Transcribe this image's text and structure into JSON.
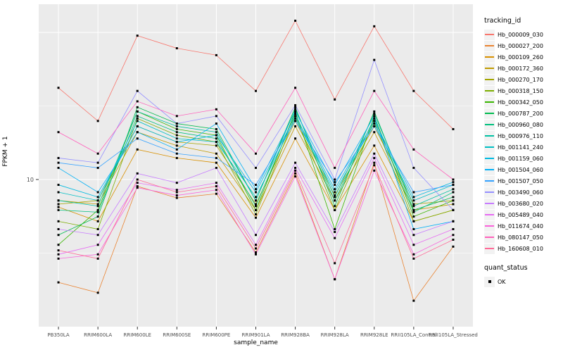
{
  "chart_data": {
    "type": "line",
    "title": "",
    "xlabel": "sample_name",
    "ylabel": "FPKM + 1",
    "y_scale": "log10",
    "ylim": [
      1,
      155
    ],
    "grid": true,
    "legend_position": "right",
    "panel_bg": "#EBEBEB",
    "grid_color": "#FFFFFF",
    "point_color": "#000000",
    "axis_text_color": "#4D4D4D",
    "y_major_ticks": [
      {
        "label": "10",
        "value": 10
      }
    ],
    "y_major_gridlines": [
      10,
      100
    ],
    "y_minor_gridlines": [
      3.162,
      31.62
    ],
    "categories": [
      "PB350LA",
      "RRIM600LA",
      "RRIM600LE",
      "RRIM600SE",
      "RRIM600PE",
      "RRIM901LA",
      "RRIM928BA",
      "RRIM928LA",
      "RRIM928LE",
      "RRII105LA_Control",
      "RRII105LA_Stressed"
    ],
    "series": [
      {
        "name": "Hb_000009_030",
        "color": "#F8766D",
        "values": [
          42,
          25,
          95,
          78,
          70,
          40,
          120,
          35,
          110,
          40,
          22
        ]
      },
      {
        "name": "Hb_000027_200",
        "color": "#EA8331",
        "values": [
          2.0,
          1.7,
          9,
          7.5,
          8,
          3.2,
          11,
          2.1,
          13,
          1.5,
          3.5
        ]
      },
      {
        "name": "Hb_000109_260",
        "color": "#D89000",
        "values": [
          6.5,
          5.2,
          16,
          14,
          13,
          5.5,
          19,
          6.2,
          17,
          5.2,
          6.2
        ]
      },
      {
        "name": "Hb_000172_360",
        "color": "#C09B00",
        "values": [
          7.2,
          6.8,
          21,
          17,
          15,
          6.2,
          23,
          7.2,
          21,
          6.2,
          6.8
        ]
      },
      {
        "name": "Hb_000270_170",
        "color": "#A3A500",
        "values": [
          6.8,
          7.2,
          23,
          18,
          17,
          6.8,
          25,
          7.8,
          23,
          6.8,
          7.2
        ]
      },
      {
        "name": "Hb_000318_150",
        "color": "#7CAE00",
        "values": [
          5.2,
          4.6,
          26,
          20,
          18,
          5.8,
          27,
          6.2,
          25,
          5.2,
          6.2
        ]
      },
      {
        "name": "Hb_000342_050",
        "color": "#39B600",
        "values": [
          3.6,
          6.2,
          29,
          22,
          20,
          6.2,
          29,
          4.6,
          27,
          5.6,
          7.2
        ]
      },
      {
        "name": "Hb_000787_200",
        "color": "#00BB4E",
        "values": [
          4.2,
          5.6,
          31,
          24,
          22,
          7.2,
          31,
          6.6,
          29,
          6.2,
          7.6
        ]
      },
      {
        "name": "Hb_000960_080",
        "color": "#00BF7D",
        "values": [
          6.2,
          6.0,
          27,
          21,
          19,
          6.6,
          28,
          7.2,
          26,
          6.0,
          8.2
        ]
      },
      {
        "name": "Hb_000976_110",
        "color": "#00C1A3",
        "values": [
          7.2,
          6.6,
          29,
          23,
          21,
          7.2,
          30,
          7.6,
          28,
          6.6,
          8.6
        ]
      },
      {
        "name": "Hb_001141_240",
        "color": "#00BFC4",
        "values": [
          8.2,
          7.2,
          25,
          19,
          18,
          7.6,
          26,
          8.2,
          24,
          7.2,
          9.2
        ]
      },
      {
        "name": "Hb_001159_060",
        "color": "#00BAE0",
        "values": [
          9.2,
          7.6,
          23,
          18,
          20,
          8.2,
          27,
          8.6,
          25,
          7.6,
          9.6
        ]
      },
      {
        "name": "Hb_001504_060",
        "color": "#00B0F6",
        "values": [
          12,
          8.2,
          21,
          16,
          24,
          8.6,
          29,
          9.2,
          27,
          4.6,
          5.2
        ]
      },
      {
        "name": "Hb_001507_050",
        "color": "#35A2FF",
        "values": [
          13,
          12,
          19,
          15,
          14,
          9.2,
          25,
          9.6,
          23,
          8.2,
          9.2
        ]
      },
      {
        "name": "Hb_003490_060",
        "color": "#9590FF",
        "values": [
          14,
          13,
          40,
          24,
          27,
          12,
          32,
          10,
          65,
          12,
          6.2
        ]
      },
      {
        "name": "Hb_003680_020",
        "color": "#C77CFF",
        "values": [
          4.6,
          4.2,
          11,
          9.5,
          12,
          4.2,
          13,
          4.4,
          15,
          4.2,
          5.2
        ]
      },
      {
        "name": "Hb_005489_040",
        "color": "#E76BF3",
        "values": [
          3.1,
          3.6,
          9.5,
          8.5,
          9.5,
          3.6,
          12,
          4.0,
          14,
          3.6,
          4.6
        ]
      },
      {
        "name": "Hb_011674_040",
        "color": "#FA62DB",
        "values": [
          2.9,
          3.1,
          8.8,
          7.8,
          8.5,
          3.1,
          10.5,
          2.1,
          11.5,
          3.1,
          4.2
        ]
      },
      {
        "name": "Hb_080147_050",
        "color": "#FF62BC",
        "values": [
          21,
          15,
          34,
          27,
          30,
          15,
          42,
          12,
          40,
          16,
          10
        ]
      },
      {
        "name": "Hb_160608_010",
        "color": "#FF6A98",
        "values": [
          3.3,
          2.9,
          10,
          8.2,
          9.0,
          3.4,
          11.5,
          2.7,
          12.5,
          2.9,
          3.9
        ]
      }
    ],
    "legend": {
      "tracking_title": "tracking_id",
      "quant_title": "quant_status",
      "quant_items": [
        "OK"
      ]
    }
  }
}
